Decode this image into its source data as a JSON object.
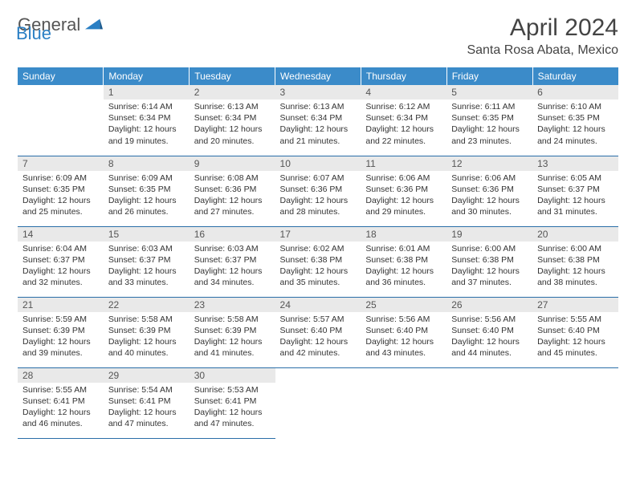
{
  "logo": {
    "text1": "General",
    "text2": "Blue"
  },
  "title": "April 2024",
  "location": "Santa Rosa Abata, Mexico",
  "colors": {
    "header_bg": "#3b8bc9",
    "header_text": "#ffffff",
    "daynum_bg": "#e9e9e9",
    "row_divider": "#2a6ea8",
    "logo_blue": "#2a7fc4"
  },
  "day_headers": [
    "Sunday",
    "Monday",
    "Tuesday",
    "Wednesday",
    "Thursday",
    "Friday",
    "Saturday"
  ],
  "weeks": [
    [
      null,
      {
        "n": "1",
        "sr": "Sunrise: 6:14 AM",
        "ss": "Sunset: 6:34 PM",
        "d1": "Daylight: 12 hours",
        "d2": "and 19 minutes."
      },
      {
        "n": "2",
        "sr": "Sunrise: 6:13 AM",
        "ss": "Sunset: 6:34 PM",
        "d1": "Daylight: 12 hours",
        "d2": "and 20 minutes."
      },
      {
        "n": "3",
        "sr": "Sunrise: 6:13 AM",
        "ss": "Sunset: 6:34 PM",
        "d1": "Daylight: 12 hours",
        "d2": "and 21 minutes."
      },
      {
        "n": "4",
        "sr": "Sunrise: 6:12 AM",
        "ss": "Sunset: 6:34 PM",
        "d1": "Daylight: 12 hours",
        "d2": "and 22 minutes."
      },
      {
        "n": "5",
        "sr": "Sunrise: 6:11 AM",
        "ss": "Sunset: 6:35 PM",
        "d1": "Daylight: 12 hours",
        "d2": "and 23 minutes."
      },
      {
        "n": "6",
        "sr": "Sunrise: 6:10 AM",
        "ss": "Sunset: 6:35 PM",
        "d1": "Daylight: 12 hours",
        "d2": "and 24 minutes."
      }
    ],
    [
      {
        "n": "7",
        "sr": "Sunrise: 6:09 AM",
        "ss": "Sunset: 6:35 PM",
        "d1": "Daylight: 12 hours",
        "d2": "and 25 minutes."
      },
      {
        "n": "8",
        "sr": "Sunrise: 6:09 AM",
        "ss": "Sunset: 6:35 PM",
        "d1": "Daylight: 12 hours",
        "d2": "and 26 minutes."
      },
      {
        "n": "9",
        "sr": "Sunrise: 6:08 AM",
        "ss": "Sunset: 6:36 PM",
        "d1": "Daylight: 12 hours",
        "d2": "and 27 minutes."
      },
      {
        "n": "10",
        "sr": "Sunrise: 6:07 AM",
        "ss": "Sunset: 6:36 PM",
        "d1": "Daylight: 12 hours",
        "d2": "and 28 minutes."
      },
      {
        "n": "11",
        "sr": "Sunrise: 6:06 AM",
        "ss": "Sunset: 6:36 PM",
        "d1": "Daylight: 12 hours",
        "d2": "and 29 minutes."
      },
      {
        "n": "12",
        "sr": "Sunrise: 6:06 AM",
        "ss": "Sunset: 6:36 PM",
        "d1": "Daylight: 12 hours",
        "d2": "and 30 minutes."
      },
      {
        "n": "13",
        "sr": "Sunrise: 6:05 AM",
        "ss": "Sunset: 6:37 PM",
        "d1": "Daylight: 12 hours",
        "d2": "and 31 minutes."
      }
    ],
    [
      {
        "n": "14",
        "sr": "Sunrise: 6:04 AM",
        "ss": "Sunset: 6:37 PM",
        "d1": "Daylight: 12 hours",
        "d2": "and 32 minutes."
      },
      {
        "n": "15",
        "sr": "Sunrise: 6:03 AM",
        "ss": "Sunset: 6:37 PM",
        "d1": "Daylight: 12 hours",
        "d2": "and 33 minutes."
      },
      {
        "n": "16",
        "sr": "Sunrise: 6:03 AM",
        "ss": "Sunset: 6:37 PM",
        "d1": "Daylight: 12 hours",
        "d2": "and 34 minutes."
      },
      {
        "n": "17",
        "sr": "Sunrise: 6:02 AM",
        "ss": "Sunset: 6:38 PM",
        "d1": "Daylight: 12 hours",
        "d2": "and 35 minutes."
      },
      {
        "n": "18",
        "sr": "Sunrise: 6:01 AM",
        "ss": "Sunset: 6:38 PM",
        "d1": "Daylight: 12 hours",
        "d2": "and 36 minutes."
      },
      {
        "n": "19",
        "sr": "Sunrise: 6:00 AM",
        "ss": "Sunset: 6:38 PM",
        "d1": "Daylight: 12 hours",
        "d2": "and 37 minutes."
      },
      {
        "n": "20",
        "sr": "Sunrise: 6:00 AM",
        "ss": "Sunset: 6:38 PM",
        "d1": "Daylight: 12 hours",
        "d2": "and 38 minutes."
      }
    ],
    [
      {
        "n": "21",
        "sr": "Sunrise: 5:59 AM",
        "ss": "Sunset: 6:39 PM",
        "d1": "Daylight: 12 hours",
        "d2": "and 39 minutes."
      },
      {
        "n": "22",
        "sr": "Sunrise: 5:58 AM",
        "ss": "Sunset: 6:39 PM",
        "d1": "Daylight: 12 hours",
        "d2": "and 40 minutes."
      },
      {
        "n": "23",
        "sr": "Sunrise: 5:58 AM",
        "ss": "Sunset: 6:39 PM",
        "d1": "Daylight: 12 hours",
        "d2": "and 41 minutes."
      },
      {
        "n": "24",
        "sr": "Sunrise: 5:57 AM",
        "ss": "Sunset: 6:40 PM",
        "d1": "Daylight: 12 hours",
        "d2": "and 42 minutes."
      },
      {
        "n": "25",
        "sr": "Sunrise: 5:56 AM",
        "ss": "Sunset: 6:40 PM",
        "d1": "Daylight: 12 hours",
        "d2": "and 43 minutes."
      },
      {
        "n": "26",
        "sr": "Sunrise: 5:56 AM",
        "ss": "Sunset: 6:40 PM",
        "d1": "Daylight: 12 hours",
        "d2": "and 44 minutes."
      },
      {
        "n": "27",
        "sr": "Sunrise: 5:55 AM",
        "ss": "Sunset: 6:40 PM",
        "d1": "Daylight: 12 hours",
        "d2": "and 45 minutes."
      }
    ],
    [
      {
        "n": "28",
        "sr": "Sunrise: 5:55 AM",
        "ss": "Sunset: 6:41 PM",
        "d1": "Daylight: 12 hours",
        "d2": "and 46 minutes."
      },
      {
        "n": "29",
        "sr": "Sunrise: 5:54 AM",
        "ss": "Sunset: 6:41 PM",
        "d1": "Daylight: 12 hours",
        "d2": "and 47 minutes."
      },
      {
        "n": "30",
        "sr": "Sunrise: 5:53 AM",
        "ss": "Sunset: 6:41 PM",
        "d1": "Daylight: 12 hours",
        "d2": "and 47 minutes."
      },
      null,
      null,
      null,
      null
    ]
  ]
}
